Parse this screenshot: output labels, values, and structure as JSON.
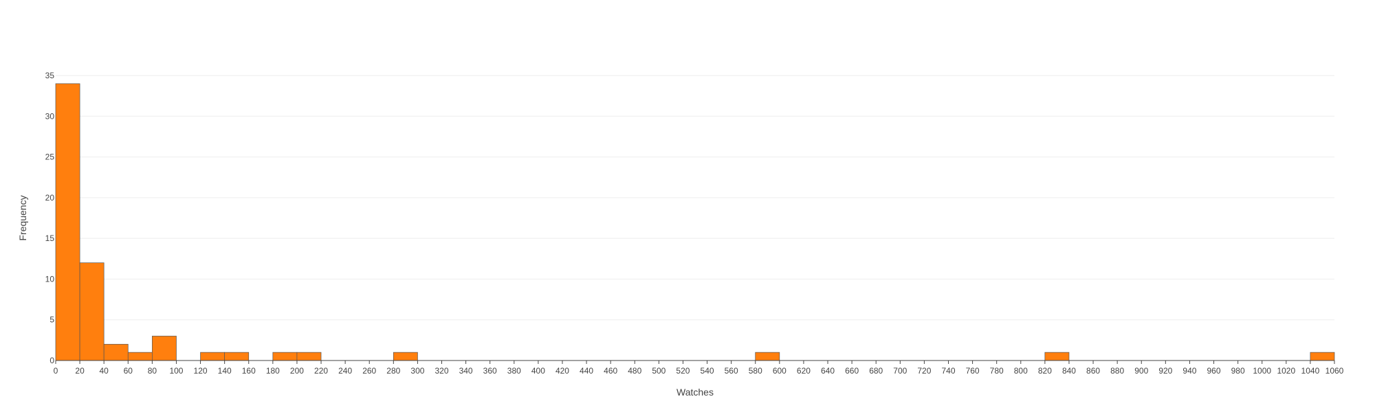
{
  "chart_data": {
    "type": "bar",
    "subtype": "histogram",
    "bin_width": 20,
    "bin_starts": [
      0,
      20,
      40,
      60,
      80,
      120,
      140,
      180,
      200,
      280,
      580,
      820,
      1040
    ],
    "values": [
      34,
      12,
      2,
      1,
      3,
      1,
      1,
      1,
      1,
      1,
      1,
      1,
      1
    ],
    "xlabel": "Watches",
    "ylabel": "Frequency",
    "xlim": [
      0,
      1060
    ],
    "ylim": [
      0,
      35
    ],
    "x_ticks": [
      0,
      20,
      40,
      60,
      80,
      100,
      120,
      140,
      160,
      180,
      200,
      220,
      240,
      260,
      280,
      300,
      320,
      340,
      360,
      380,
      400,
      420,
      440,
      460,
      480,
      500,
      520,
      540,
      560,
      580,
      600,
      620,
      640,
      660,
      680,
      700,
      720,
      740,
      760,
      780,
      800,
      820,
      840,
      860,
      880,
      900,
      920,
      940,
      960,
      980,
      1000,
      1020,
      1040,
      1060
    ],
    "y_ticks": [
      0,
      5,
      10,
      15,
      20,
      25,
      30,
      35
    ],
    "grid": true,
    "legend": "none",
    "bar_color": "#ff7f0e",
    "bar_edge_color": "#555555"
  }
}
